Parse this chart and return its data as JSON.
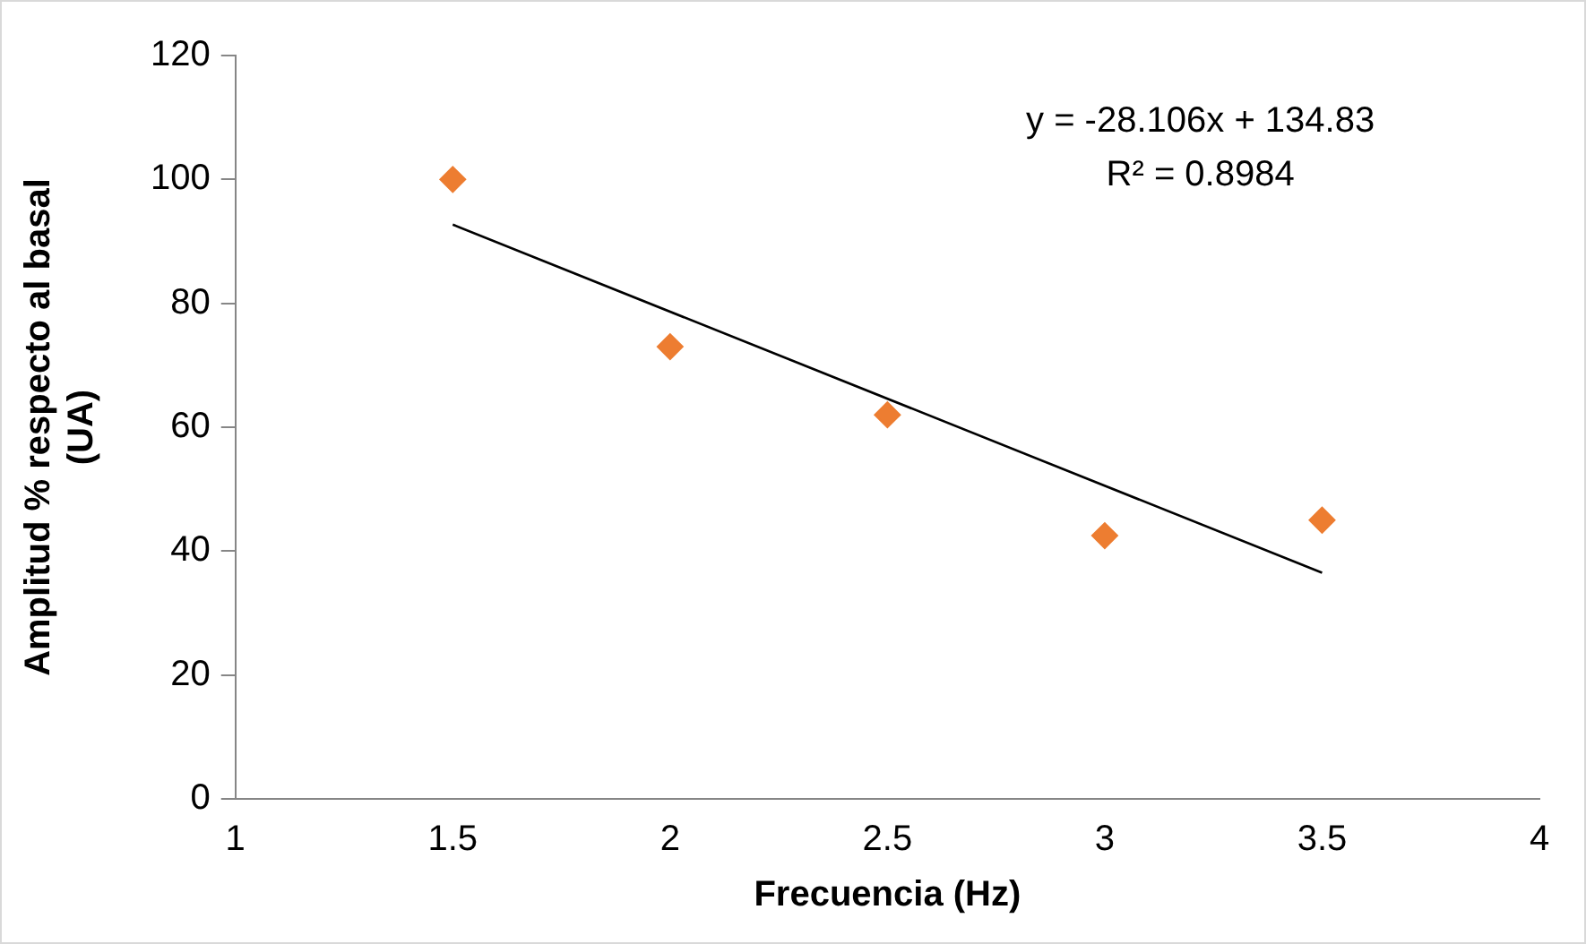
{
  "chart_data": {
    "type": "scatter",
    "xlabel": "Frecuencia (Hz)",
    "ylabel": "Amplitud % respecto al basal (UA)",
    "xlim": [
      1,
      4
    ],
    "xticks": [
      1,
      1.5,
      2,
      2.5,
      3,
      3.5,
      4
    ],
    "ylim": [
      0,
      120
    ],
    "yticks": [
      0,
      20,
      40,
      60,
      80,
      100,
      120
    ],
    "grid": false,
    "legend": false,
    "marker": "diamond",
    "series": [
      {
        "color": "#ed7d31",
        "x": [
          1.5,
          2,
          2.5,
          3,
          3.5
        ],
        "values": [
          100,
          73,
          62,
          42.5,
          45
        ]
      },
      {
        "type": "line",
        "color": "#000000",
        "x": [
          1.5,
          3.5
        ],
        "values": [
          92.7,
          36.5
        ],
        "marker": "none",
        "line_style": "solid"
      }
    ],
    "annotations": [
      "y = -28.106x + 134.83",
      "R² = 0.8984"
    ]
  }
}
